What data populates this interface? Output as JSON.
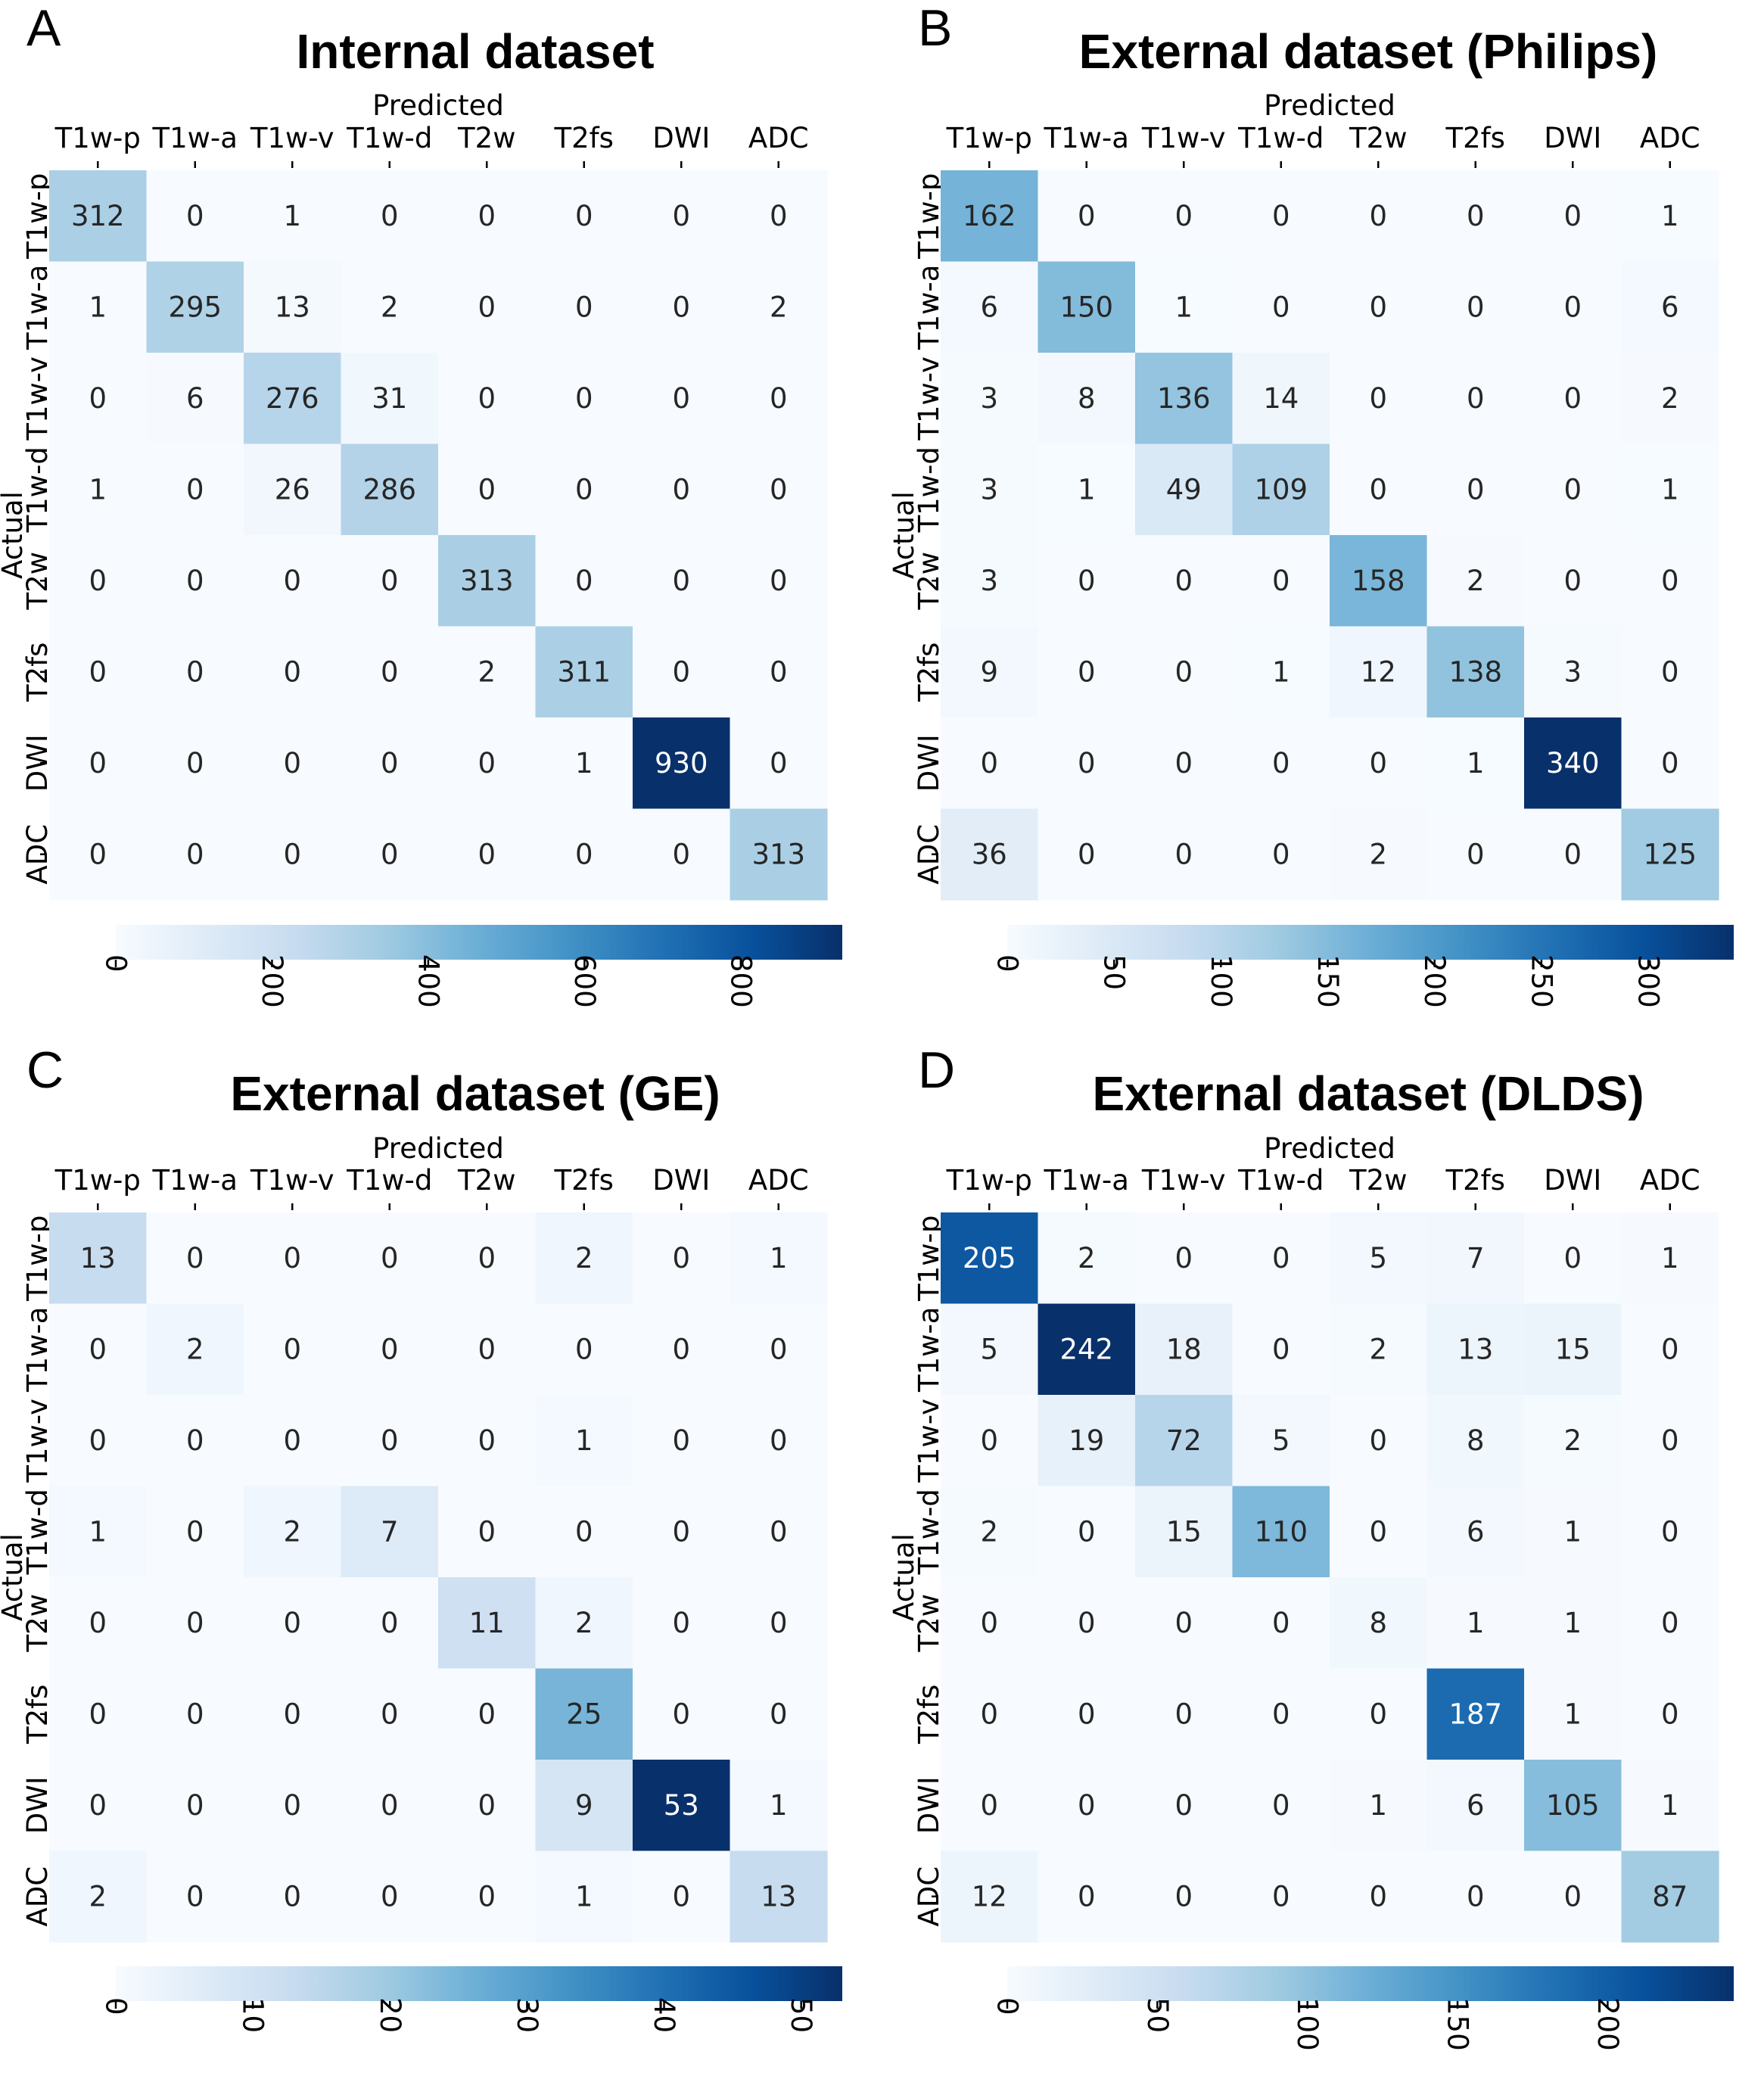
{
  "chart_data": [
    {
      "type": "heatmap",
      "panel": "A",
      "title": "Internal dataset",
      "xlabel": "Predicted",
      "ylabel": "Actual",
      "x_categories": [
        "T1w-p",
        "T1w-a",
        "T1w-v",
        "T1w-d",
        "T2w",
        "T2fs",
        "DWI",
        "ADC"
      ],
      "y_categories": [
        "T1w-p",
        "T1w-a",
        "T1w-v",
        "T1w-d",
        "T2w",
        "T2fs",
        "DWI",
        "ADC"
      ],
      "matrix": [
        [
          312,
          0,
          1,
          0,
          0,
          0,
          0,
          0
        ],
        [
          1,
          295,
          13,
          2,
          0,
          0,
          0,
          2
        ],
        [
          0,
          6,
          276,
          31,
          0,
          0,
          0,
          0
        ],
        [
          1,
          0,
          26,
          286,
          0,
          0,
          0,
          0
        ],
        [
          0,
          0,
          0,
          0,
          313,
          0,
          0,
          0
        ],
        [
          0,
          0,
          0,
          0,
          2,
          311,
          0,
          0
        ],
        [
          0,
          0,
          0,
          0,
          0,
          1,
          930,
          0
        ],
        [
          0,
          0,
          0,
          0,
          0,
          0,
          0,
          313
        ]
      ],
      "colormap": "Blues",
      "vmin": 0,
      "vmax": 930,
      "colorbar_ticks": [
        "0",
        "200",
        "400",
        "600",
        "800"
      ]
    },
    {
      "type": "heatmap",
      "panel": "B",
      "title": "External dataset (Philips)",
      "xlabel": "Predicted",
      "ylabel": "Actual",
      "x_categories": [
        "T1w-p",
        "T1w-a",
        "T1w-v",
        "T1w-d",
        "T2w",
        "T2fs",
        "DWI",
        "ADC"
      ],
      "y_categories": [
        "T1w-p",
        "T1w-a",
        "T1w-v",
        "T1w-d",
        "T2w",
        "T2fs",
        "DWI",
        "ADC"
      ],
      "matrix": [
        [
          162,
          0,
          0,
          0,
          0,
          0,
          0,
          1
        ],
        [
          6,
          150,
          1,
          0,
          0,
          0,
          0,
          6
        ],
        [
          3,
          8,
          136,
          14,
          0,
          0,
          0,
          2
        ],
        [
          3,
          1,
          49,
          109,
          0,
          0,
          0,
          1
        ],
        [
          3,
          0,
          0,
          0,
          158,
          2,
          0,
          0
        ],
        [
          9,
          0,
          0,
          1,
          12,
          138,
          3,
          0
        ],
        [
          0,
          0,
          0,
          0,
          0,
          1,
          340,
          0
        ],
        [
          36,
          0,
          0,
          0,
          2,
          0,
          0,
          125
        ]
      ],
      "colormap": "Blues",
      "vmin": 0,
      "vmax": 340,
      "colorbar_ticks": [
        "0",
        "50",
        "100",
        "150",
        "200",
        "250",
        "300"
      ]
    },
    {
      "type": "heatmap",
      "panel": "C",
      "title": "External dataset (GE)",
      "xlabel": "Predicted",
      "ylabel": "Actual",
      "x_categories": [
        "T1w-p",
        "T1w-a",
        "T1w-v",
        "T1w-d",
        "T2w",
        "T2fs",
        "DWI",
        "ADC"
      ],
      "y_categories": [
        "T1w-p",
        "T1w-a",
        "T1w-v",
        "T1w-d",
        "T2w",
        "T2fs",
        "DWI",
        "ADC"
      ],
      "matrix": [
        [
          13,
          0,
          0,
          0,
          0,
          2,
          0,
          1
        ],
        [
          0,
          2,
          0,
          0,
          0,
          0,
          0,
          0
        ],
        [
          0,
          0,
          0,
          0,
          0,
          1,
          0,
          0
        ],
        [
          1,
          0,
          2,
          7,
          0,
          0,
          0,
          0
        ],
        [
          0,
          0,
          0,
          0,
          11,
          2,
          0,
          0
        ],
        [
          0,
          0,
          0,
          0,
          0,
          25,
          0,
          0
        ],
        [
          0,
          0,
          0,
          0,
          0,
          9,
          53,
          1
        ],
        [
          2,
          0,
          0,
          0,
          0,
          1,
          0,
          13
        ]
      ],
      "colormap": "Blues",
      "vmin": 0,
      "vmax": 53,
      "colorbar_ticks": [
        "0",
        "10",
        "20",
        "30",
        "40",
        "50"
      ]
    },
    {
      "type": "heatmap",
      "panel": "D",
      "title": "External dataset (DLDS)",
      "xlabel": "Predicted",
      "ylabel": "Actual",
      "x_categories": [
        "T1w-p",
        "T1w-a",
        "T1w-v",
        "T1w-d",
        "T2w",
        "T2fs",
        "DWI",
        "ADC"
      ],
      "y_categories": [
        "T1w-p",
        "T1w-a",
        "T1w-v",
        "T1w-d",
        "T2w",
        "T2fs",
        "DWI",
        "ADC"
      ],
      "matrix": [
        [
          205,
          2,
          0,
          0,
          5,
          7,
          0,
          1
        ],
        [
          5,
          242,
          18,
          0,
          2,
          13,
          15,
          0
        ],
        [
          0,
          19,
          72,
          5,
          0,
          8,
          2,
          0
        ],
        [
          2,
          0,
          15,
          110,
          0,
          6,
          1,
          0
        ],
        [
          0,
          0,
          0,
          0,
          8,
          1,
          1,
          0
        ],
        [
          0,
          0,
          0,
          0,
          0,
          187,
          1,
          0
        ],
        [
          0,
          0,
          0,
          0,
          1,
          6,
          105,
          1
        ],
        [
          12,
          0,
          0,
          0,
          0,
          0,
          0,
          87
        ]
      ],
      "colormap": "Blues",
      "vmin": 0,
      "vmax": 242,
      "colorbar_ticks": [
        "0",
        "50",
        "100",
        "150",
        "200"
      ]
    }
  ]
}
